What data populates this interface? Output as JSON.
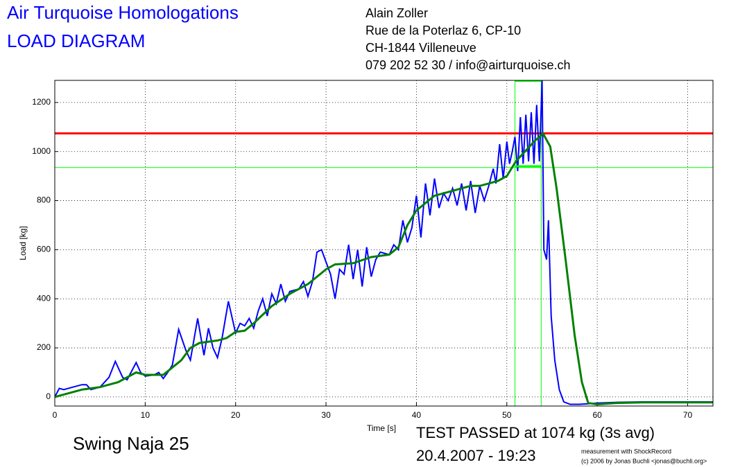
{
  "header": {
    "title": "Air Turquoise Homologations",
    "subtitle": "LOAD DIAGRAM",
    "address": [
      "Alain Zoller",
      "Rue de la Poterlaz 6, CP-10",
      "CH-1844 Villeneuve",
      "079 202 52 30 / info@airturquoise.ch"
    ]
  },
  "chart_data": {
    "type": "line",
    "x_label": "Time [s]",
    "y_label": "Load [kg]",
    "xlim": [
      0,
      72.8
    ],
    "ylim": [
      -37,
      1290
    ],
    "xticks": [
      0,
      10,
      20,
      30,
      40,
      50,
      60,
      70
    ],
    "yticks": [
      0,
      200,
      400,
      600,
      800,
      1000,
      1200
    ],
    "grid": true,
    "series": [
      {
        "color": "#0000ff",
        "x": [
          0,
          0.5,
          1,
          2,
          3,
          3.5,
          4,
          5,
          6,
          6.7,
          7.5,
          8,
          9,
          9.5,
          10,
          11,
          11.5,
          12,
          12.5,
          13,
          13.7,
          14.5,
          15,
          15.8,
          16.5,
          17,
          17.5,
          18,
          18.5,
          19.2,
          20,
          20.5,
          21,
          21.5,
          22,
          22.5,
          23,
          23.5,
          24,
          24.5,
          25,
          25.5,
          26,
          27,
          27.5,
          28,
          28.5,
          29,
          29.5,
          30,
          30.5,
          31,
          31.5,
          32,
          32.5,
          33,
          33.5,
          34,
          34.5,
          35,
          35.5,
          36,
          37,
          37.5,
          38,
          38.5,
          39,
          39.5,
          40,
          40.5,
          41,
          41.5,
          42,
          42.5,
          43,
          43.5,
          44,
          44.5,
          45,
          45.5,
          46,
          46.5,
          47,
          47.5,
          48,
          48.5,
          48.8,
          49.2,
          49.6,
          50,
          50.3,
          50.6,
          50.9,
          51.2,
          51.5,
          51.8,
          52.1,
          52.4,
          52.7,
          53,
          53.3,
          53.6,
          53.9,
          54.1,
          54.4,
          54.6,
          54.9,
          55.3,
          55.8,
          56.3,
          57,
          58,
          59,
          60,
          62,
          65,
          70,
          72.8
        ],
        "values": [
          0,
          35,
          30,
          40,
          50,
          50,
          30,
          40,
          80,
          145,
          80,
          70,
          140,
          100,
          85,
          90,
          100,
          75,
          100,
          130,
          275,
          190,
          150,
          320,
          170,
          280,
          200,
          160,
          240,
          390,
          260,
          300,
          290,
          320,
          280,
          350,
          400,
          330,
          420,
          380,
          460,
          390,
          430,
          440,
          470,
          410,
          470,
          590,
          600,
          550,
          500,
          400,
          520,
          500,
          620,
          480,
          600,
          450,
          610,
          490,
          560,
          590,
          580,
          620,
          600,
          720,
          630,
          690,
          820,
          650,
          870,
          740,
          890,
          770,
          830,
          800,
          850,
          780,
          870,
          760,
          880,
          750,
          860,
          800,
          860,
          930,
          870,
          1030,
          890,
          1040,
          950,
          1000,
          1060,
          920,
          1140,
          950,
          1150,
          960,
          1160,
          950,
          1190,
          960,
          1290,
          600,
          560,
          720,
          330,
          150,
          30,
          -20,
          -30,
          -30,
          -28,
          -25,
          -22,
          -20,
          -20,
          -20
        ]
      },
      {
        "color": "#008000",
        "x": [
          0,
          3,
          5,
          7,
          9,
          10,
          12,
          14,
          15,
          16,
          18,
          19,
          20,
          21,
          22,
          24,
          26,
          28,
          30,
          31,
          33,
          35,
          37,
          38,
          39,
          40,
          42,
          44,
          45,
          46,
          47,
          48,
          49,
          50,
          51,
          52,
          53,
          54,
          54.8,
          55.5,
          56.5,
          57.5,
          58.3,
          59,
          60,
          62,
          65,
          70,
          72.8
        ],
        "values": [
          0,
          30,
          40,
          60,
          100,
          90,
          90,
          150,
          200,
          220,
          230,
          240,
          265,
          270,
          300,
          370,
          420,
          460,
          520,
          540,
          545,
          570,
          580,
          610,
          700,
          760,
          820,
          840,
          850,
          860,
          860,
          870,
          880,
          900,
          960,
          1000,
          1040,
          1074,
          1020,
          850,
          560,
          250,
          60,
          -25,
          -30,
          -25,
          -22,
          -22,
          -22
        ]
      }
    ],
    "hlines": [
      {
        "value": 1074,
        "color": "#ff0000"
      },
      {
        "value": 935,
        "color": "#00ff00"
      }
    ],
    "vlines": [
      50.9,
      53.8
    ],
    "window": {
      "x": [
        50.9,
        53.8
      ],
      "value": 940
    }
  },
  "footer": {
    "name": "Swing Naja 25",
    "result": "TEST PASSED at 1074 kg (3s avg)",
    "date": "20.4.2007 - 19:23",
    "credit1": "measurement with ShockRecord",
    "credit2": "(c) 2006 by Jonas Buchli <jonas@buchli.org>"
  }
}
